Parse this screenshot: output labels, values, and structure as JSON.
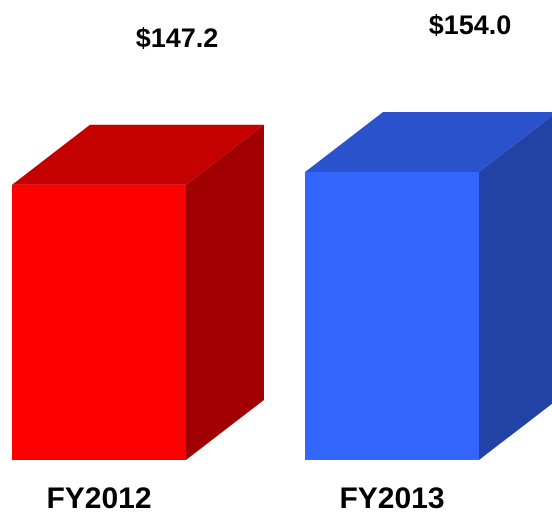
{
  "chart_data": {
    "type": "bar3d",
    "categories": [
      "FY2012",
      "FY2013"
    ],
    "values": [
      147.2,
      154.0
    ],
    "value_labels": [
      "$147.2",
      "$154.0"
    ],
    "colors": [
      {
        "front": "#ff0000",
        "top": "#c40000",
        "side": "#a00000"
      },
      {
        "front": "#3366ff",
        "top": "#2a52cc",
        "side": "#2242a6"
      }
    ]
  }
}
